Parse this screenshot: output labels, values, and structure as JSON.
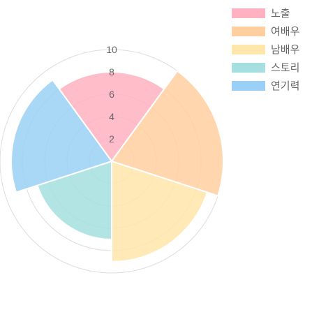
{
  "chart_data": {
    "type": "polarArea",
    "categories": [
      "노출",
      "여배우",
      "남배우",
      "스토리",
      "연기력"
    ],
    "values": [
      8,
      10,
      9,
      7,
      9
    ],
    "colors": [
      "#ffb1c1",
      "#ffcf9f",
      "#ffe6aa",
      "#a5dfdf",
      "#9ad0f5"
    ],
    "rlim": [
      0,
      10
    ],
    "r_ticks": [
      "2",
      "4",
      "6",
      "8",
      "10"
    ],
    "grid": true,
    "legend": "top-right"
  }
}
